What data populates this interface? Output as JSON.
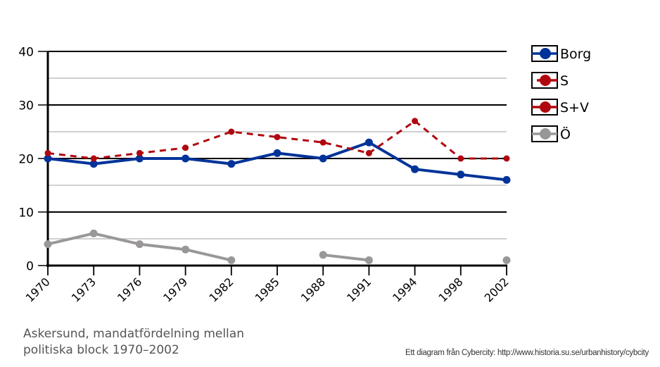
{
  "chart_data": {
    "type": "line",
    "title": "Askersund, mandatfördelning mellan politiska block 1970-2002",
    "xlabel": "",
    "ylabel": "",
    "categories": [
      "1970",
      "1973",
      "1976",
      "1979",
      "1982",
      "1985",
      "1988",
      "1991",
      "1994",
      "1998",
      "2002"
    ],
    "ylim": [
      0,
      40
    ],
    "yticks": [
      "0",
      "10",
      "20",
      "30",
      "40"
    ],
    "grid": true,
    "legend_position": "right",
    "series": [
      {
        "name": "Borg",
        "color": "#003399",
        "style": "solid",
        "marker_color": "#003399",
        "values": [
          20,
          19,
          20,
          20,
          19,
          21,
          20,
          23,
          18,
          17,
          16
        ]
      },
      {
        "name": "S",
        "color": "#b0070f",
        "style": "none",
        "marker_color": "#b0070f",
        "values": [
          null,
          null,
          null,
          null,
          null,
          null,
          null,
          null,
          null,
          null,
          null
        ]
      },
      {
        "name": "S+V",
        "color": "#b0070f",
        "style": "dashed",
        "marker_color": "#b0070f",
        "values": [
          21,
          20,
          21,
          22,
          25,
          24,
          23,
          21,
          27,
          20,
          20
        ]
      },
      {
        "name": "Ö",
        "color": "#9a9797",
        "style": "solid",
        "marker_color": "#9a9797",
        "values": [
          4,
          6,
          4,
          3,
          1,
          null,
          2,
          1,
          null,
          null,
          1
        ]
      }
    ]
  },
  "caption": {
    "line1": "Askersund, mandatfördelning mellan",
    "line2": "politiska block 1970–2002"
  },
  "credit": "Ett diagram från Cybercity: http://www.historia.su.se/urbanhistory/cybcity"
}
